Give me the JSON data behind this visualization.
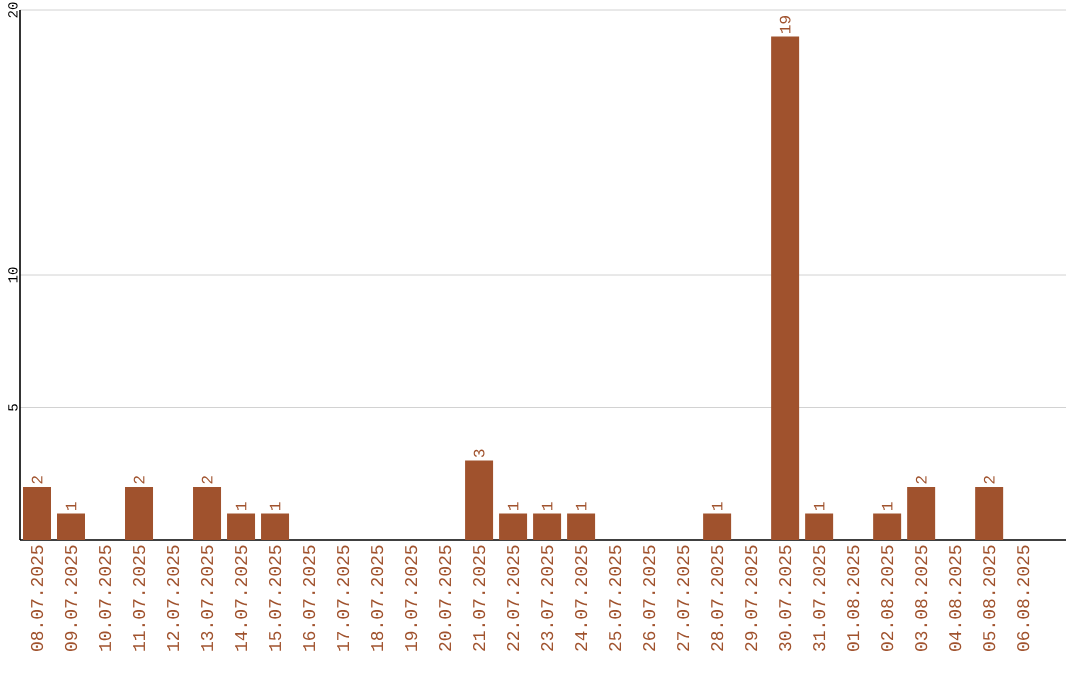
{
  "chart_data": {
    "type": "bar",
    "categories": [
      "08.07.2025",
      "09.07.2025",
      "10.07.2025",
      "11.07.2025",
      "12.07.2025",
      "13.07.2025",
      "14.07.2025",
      "15.07.2025",
      "16.07.2025",
      "17.07.2025",
      "18.07.2025",
      "19.07.2025",
      "20.07.2025",
      "21.07.2025",
      "22.07.2025",
      "23.07.2025",
      "24.07.2025",
      "25.07.2025",
      "26.07.2025",
      "27.07.2025",
      "28.07.2025",
      "29.07.2025",
      "30.07.2025",
      "31.07.2025",
      "01.08.2025",
      "02.08.2025",
      "03.08.2025",
      "04.08.2025",
      "05.08.2025",
      "06.08.2025"
    ],
    "values": [
      2,
      1,
      0,
      2,
      0,
      2,
      1,
      1,
      0,
      0,
      0,
      0,
      0,
      3,
      1,
      1,
      1,
      0,
      0,
      0,
      1,
      0,
      19,
      1,
      0,
      1,
      2,
      0,
      2,
      0
    ],
    "value_labels": [
      "2",
      "1",
      null,
      "2",
      null,
      "2",
      "1",
      "1",
      null,
      null,
      null,
      null,
      null,
      "3",
      "1",
      "1",
      "1",
      null,
      null,
      null,
      "1",
      null,
      "19",
      "1",
      null,
      "1",
      "2",
      null,
      "2",
      null
    ],
    "color": "#a0522d",
    "ylim": [
      0,
      20
    ],
    "yticks": [
      5,
      10,
      20
    ],
    "grid": "y"
  }
}
